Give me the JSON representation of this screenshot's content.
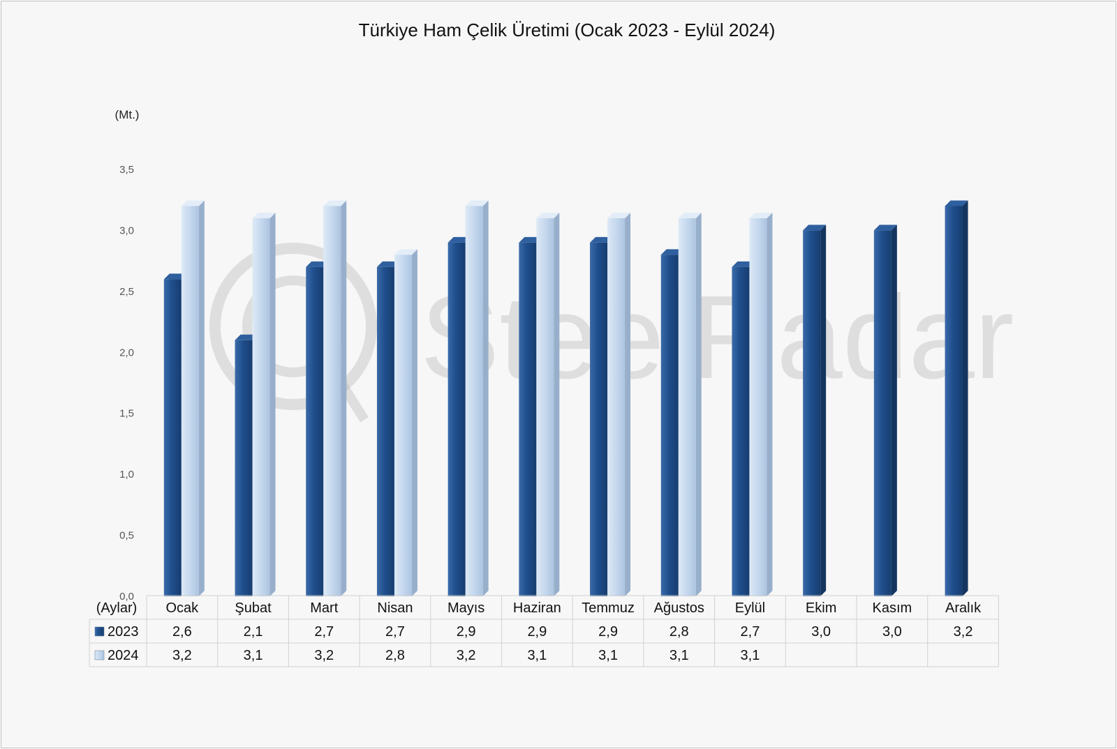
{
  "chart_data": {
    "type": "bar",
    "title": "Türkiye Ham Çelik Üretimi (Ocak 2023 - Eylül 2024)",
    "unit_label": "(Mt.)",
    "category_header": "(Aylar)",
    "watermark": "SteelRadar",
    "categories": [
      "Ocak",
      "Şubat",
      "Mart",
      "Nisan",
      "Mayıs",
      "Haziran",
      "Temmuz",
      "Ağustos",
      "Eylül",
      "Ekim",
      "Kasım",
      "Aralık"
    ],
    "series": [
      {
        "name": "2023",
        "values": [
          2.6,
          2.1,
          2.7,
          2.7,
          2.9,
          2.9,
          2.9,
          2.8,
          2.7,
          3.0,
          3.0,
          3.2
        ],
        "labels": [
          "2,6",
          "2,1",
          "2,7",
          "2,7",
          "2,9",
          "2,9",
          "2,9",
          "2,8",
          "2,7",
          "3,0",
          "3,0",
          "3,2"
        ],
        "color": "#1f4e8c"
      },
      {
        "name": "2024",
        "values": [
          3.2,
          3.1,
          3.2,
          2.8,
          3.2,
          3.1,
          3.1,
          3.1,
          3.1,
          null,
          null,
          null
        ],
        "labels": [
          "3,2",
          "3,1",
          "3,2",
          "2,8",
          "3,2",
          "3,1",
          "3,1",
          "3,1",
          "3,1",
          "",
          "",
          ""
        ],
        "color": "#c5d8ee"
      }
    ],
    "ylim": [
      0,
      3.5
    ],
    "yticks": [
      "0,0",
      "0,5",
      "1,0",
      "1,5",
      "2,0",
      "2,5",
      "3,0",
      "3,5"
    ],
    "grid": false,
    "legend": "data-table"
  }
}
